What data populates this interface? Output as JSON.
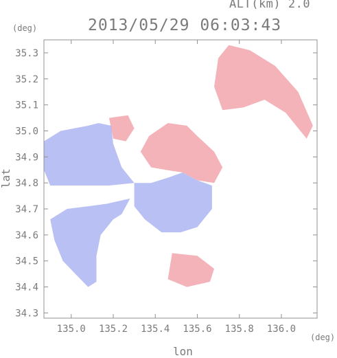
{
  "header": {
    "altitude": "ALT(km) 2.0",
    "datetime": "2013/05/29 06:03:43"
  },
  "chart_data": {
    "type": "heatmap",
    "title": "2013/05/29 06:03:43",
    "xlabel": "lon",
    "ylabel": "lat",
    "x_unit": "(deg)",
    "y_unit": "(deg)",
    "xlim": [
      134.87,
      136.17
    ],
    "ylim": [
      34.28,
      35.35
    ],
    "x_ticks": [
      "135.0",
      "135.2",
      "135.4",
      "135.6",
      "135.8",
      "136.0"
    ],
    "x_tick_values": [
      135.0,
      135.2,
      135.4,
      135.6,
      135.8,
      136.0
    ],
    "y_ticks": [
      "34.3",
      "34.4",
      "34.5",
      "34.6",
      "34.7",
      "34.8",
      "34.9",
      "35.0",
      "35.1",
      "35.2",
      "35.3"
    ],
    "y_tick_values": [
      34.3,
      34.4,
      34.5,
      34.6,
      34.7,
      34.8,
      34.9,
      35.0,
      35.1,
      35.2,
      35.3
    ],
    "radar_center": [
      135.53,
      34.84
    ],
    "colors": {
      "positive": "#f0a0a8",
      "negative": "#a8b0f0",
      "frame": "#909090"
    },
    "regions": [
      {
        "sign": "positive",
        "polygon": [
          [
            135.75,
            35.33
          ],
          [
            135.85,
            35.31
          ],
          [
            135.97,
            35.25
          ],
          [
            136.08,
            35.15
          ],
          [
            136.15,
            35.02
          ],
          [
            136.12,
            34.97
          ],
          [
            136.02,
            35.07
          ],
          [
            135.92,
            35.12
          ],
          [
            135.82,
            35.09
          ],
          [
            135.72,
            35.08
          ],
          [
            135.68,
            35.17
          ],
          [
            135.7,
            35.28
          ]
        ]
      },
      {
        "sign": "positive",
        "polygon": [
          [
            135.33,
            34.92
          ],
          [
            135.37,
            34.98
          ],
          [
            135.46,
            35.03
          ],
          [
            135.55,
            35.02
          ],
          [
            135.6,
            34.98
          ],
          [
            135.68,
            34.92
          ],
          [
            135.72,
            34.86
          ],
          [
            135.68,
            34.8
          ],
          [
            135.6,
            34.81
          ],
          [
            135.53,
            34.84
          ],
          [
            135.45,
            34.85
          ],
          [
            135.38,
            34.86
          ]
        ]
      },
      {
        "sign": "positive",
        "polygon": [
          [
            135.18,
            35.05
          ],
          [
            135.27,
            35.06
          ],
          [
            135.3,
            35.01
          ],
          [
            135.26,
            34.96
          ],
          [
            135.2,
            34.97
          ]
        ]
      },
      {
        "sign": "negative",
        "polygon": [
          [
            134.87,
            34.96
          ],
          [
            134.95,
            35.0
          ],
          [
            135.08,
            35.02
          ],
          [
            135.13,
            35.03
          ],
          [
            135.19,
            35.02
          ],
          [
            135.2,
            34.95
          ],
          [
            135.24,
            34.86
          ],
          [
            135.3,
            34.8
          ],
          [
            135.18,
            34.79
          ],
          [
            135.05,
            34.79
          ],
          [
            134.9,
            34.79
          ],
          [
            134.87,
            34.85
          ]
        ]
      },
      {
        "sign": "negative",
        "polygon": [
          [
            135.3,
            34.8
          ],
          [
            135.38,
            34.8
          ],
          [
            135.46,
            34.82
          ],
          [
            135.53,
            34.84
          ],
          [
            135.6,
            34.81
          ],
          [
            135.67,
            34.79
          ],
          [
            135.67,
            34.7
          ],
          [
            135.6,
            34.63
          ],
          [
            135.52,
            34.61
          ],
          [
            135.43,
            34.61
          ],
          [
            135.35,
            34.66
          ],
          [
            135.3,
            34.71
          ]
        ]
      },
      {
        "sign": "negative",
        "polygon": [
          [
            134.9,
            34.66
          ],
          [
            134.98,
            34.7
          ],
          [
            135.08,
            34.71
          ],
          [
            135.17,
            34.72
          ],
          [
            135.28,
            34.74
          ],
          [
            135.24,
            34.68
          ],
          [
            135.2,
            34.66
          ],
          [
            135.14,
            34.6
          ],
          [
            135.12,
            34.52
          ],
          [
            135.12,
            34.42
          ],
          [
            135.08,
            34.4
          ],
          [
            135.02,
            34.45
          ],
          [
            134.96,
            34.5
          ],
          [
            134.92,
            34.58
          ]
        ]
      },
      {
        "sign": "positive",
        "polygon": [
          [
            135.48,
            34.53
          ],
          [
            135.6,
            34.52
          ],
          [
            135.68,
            34.47
          ],
          [
            135.66,
            34.42
          ],
          [
            135.55,
            34.4
          ],
          [
            135.46,
            34.43
          ]
        ]
      }
    ]
  }
}
